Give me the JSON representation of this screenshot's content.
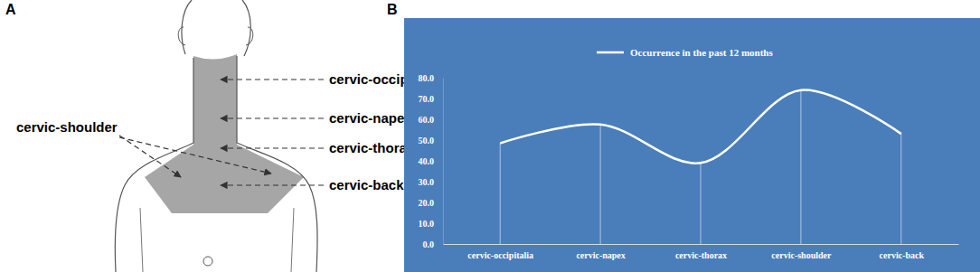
{
  "panel_labels": [
    "A",
    "B"
  ],
  "diagram": {
    "regions": [
      "cervic-occipital",
      "cervic-napex",
      "cervic-thorax",
      "cervic-back"
    ],
    "side_region": "cervic-shoulder"
  },
  "chart_data": {
    "type": "line",
    "categories": [
      "cervic-occipitalia",
      "cervic-napex",
      "cervic-thorax",
      "cervic-shoulder",
      "cervic-back"
    ],
    "series": [
      {
        "name": "Occurrence in the past 12 months",
        "color": "#ffffff",
        "values": [
          48.5,
          57.5,
          39,
          74,
          53
        ]
      }
    ],
    "ylim": [
      0,
      80
    ],
    "yticks": [
      {
        "value": 0,
        "label": "0.0"
      },
      {
        "value": 10,
        "label": "10.0"
      },
      {
        "value": 20,
        "label": "20.0"
      },
      {
        "value": 30,
        "label": "30.0"
      },
      {
        "value": 40,
        "label": "40.0"
      },
      {
        "value": 50,
        "label": "50.0"
      },
      {
        "value": 60,
        "label": "60.0"
      },
      {
        "value": 70,
        "label": "70.0"
      },
      {
        "value": 80,
        "label": "80.0"
      }
    ],
    "legend": "top",
    "grid": false
  }
}
